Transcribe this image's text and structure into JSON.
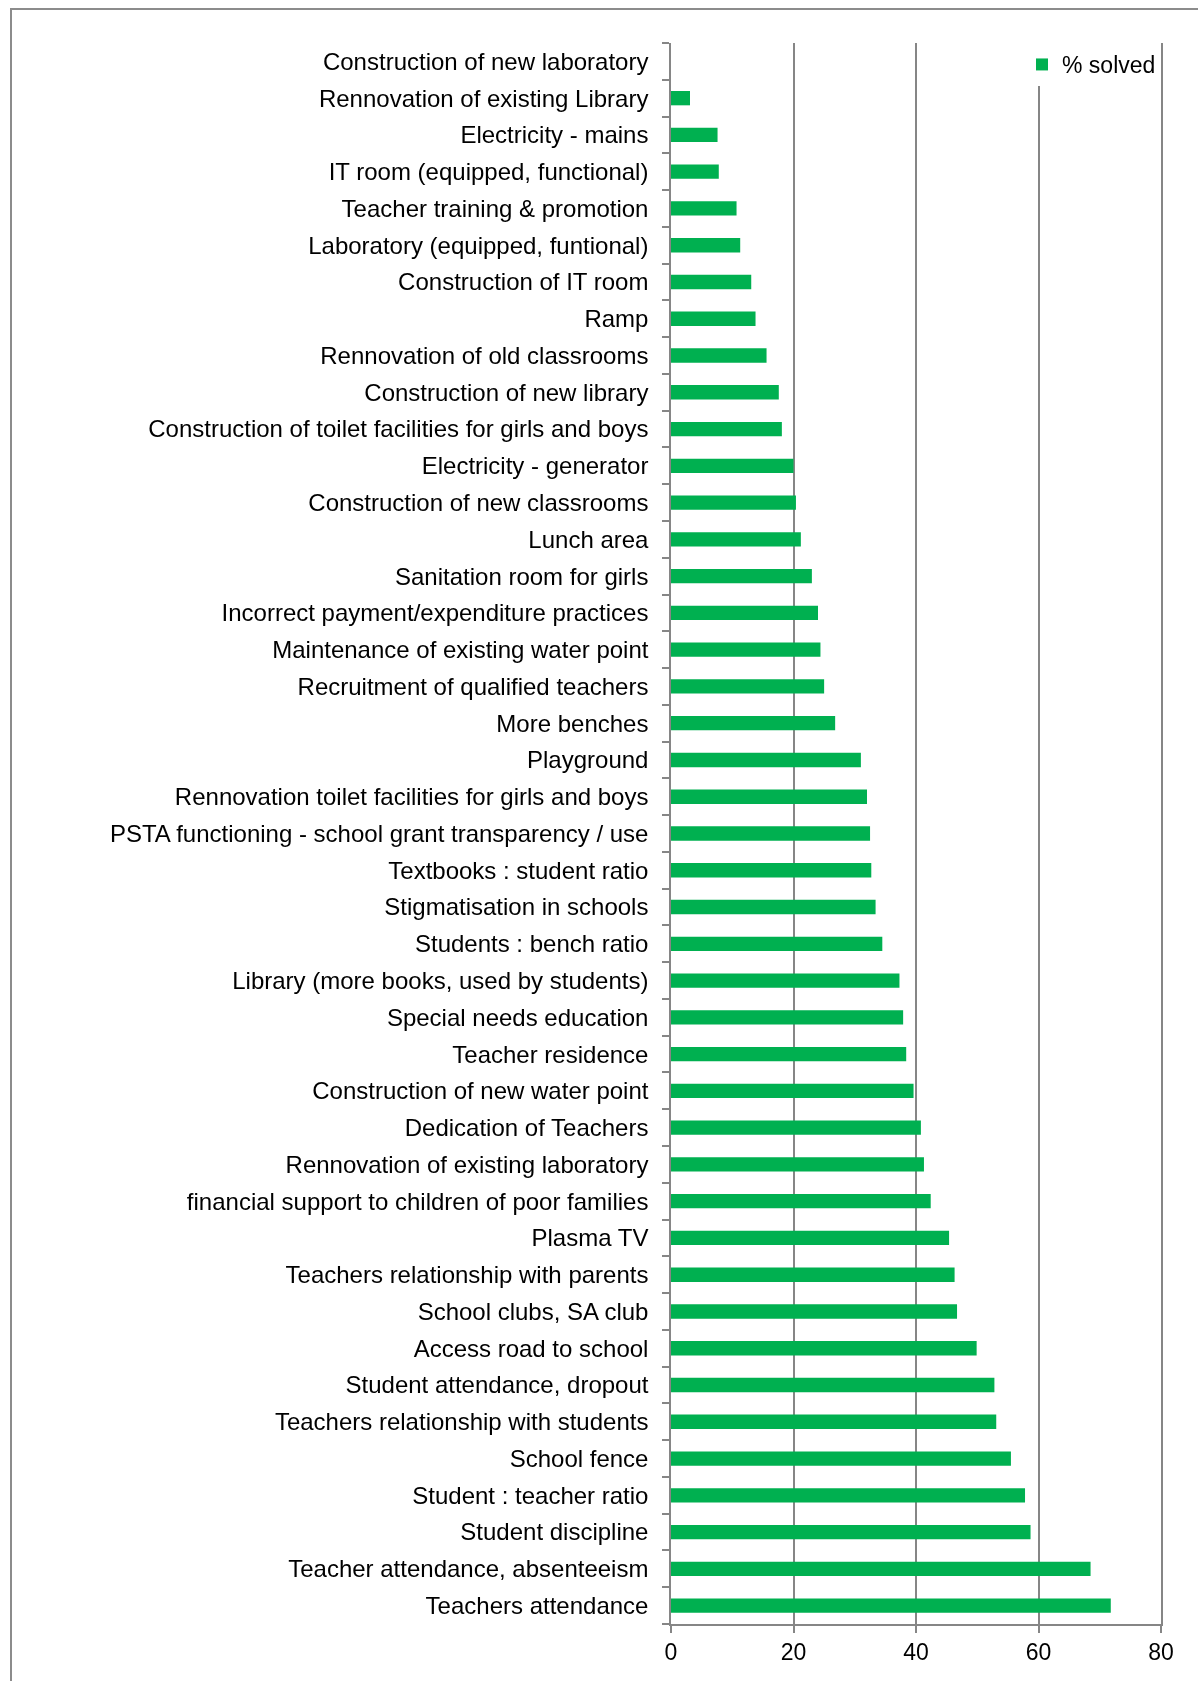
{
  "chart_data": {
    "type": "bar",
    "orientation": "horizontal",
    "categories": [
      "Construction of new laboratory",
      "Rennovation of existing Library",
      "Electricity - mains",
      "IT room (equipped, functional)",
      "Teacher training & promotion",
      "Laboratory (equipped, funtional)",
      "Construction of IT room",
      "Ramp",
      "Rennovation of old classrooms",
      "Construction of new library",
      "Construction of toilet facilities for girls and boys",
      "Electricity - generator",
      "Construction of new classrooms",
      "Lunch area",
      "Sanitation room for girls",
      "Incorrect payment/expenditure practices",
      "Maintenance of existing water point",
      "Recruitment of qualified teachers",
      "More benches",
      "Playground",
      "Rennovation toilet facilities for girls and boys",
      "PSTA functioning - school grant transparency / use",
      "Textbooks : student ratio",
      "Stigmatisation in schools",
      "Students : bench ratio",
      "Library (more books, used by students)",
      "Special needs education",
      "Teacher residence",
      "Construction of new water point",
      "Dedication of Teachers",
      "Rennovation of existing laboratory",
      "financial support to children of poor families",
      "Plasma TV",
      "Teachers relationship with parents",
      "School clubs, SA club",
      "Access road to school",
      "Student attendance, dropout",
      "Teachers relationship with students",
      "School fence",
      "Student : teacher ratio",
      "Student discipline",
      "Teacher attendance, absenteeism",
      "Teachers attendance"
    ],
    "series": [
      {
        "name": "% solved",
        "color": "#00b050",
        "values": [
          0,
          3.1,
          7.6,
          7.8,
          10.7,
          11.3,
          13.1,
          13.8,
          15.6,
          17.6,
          18.1,
          20.0,
          20.4,
          21.2,
          23.0,
          24.0,
          24.4,
          25.0,
          26.8,
          31.0,
          32.0,
          32.5,
          32.7,
          33.4,
          34.5,
          37.3,
          37.9,
          38.4,
          39.6,
          40.8,
          41.3,
          42.4,
          45.4,
          46.3,
          46.7,
          49.9,
          52.8,
          53.1,
          55.5,
          57.8,
          58.7,
          68.5,
          71.8
        ]
      }
    ],
    "xlim": [
      0,
      80
    ],
    "xticks": [
      0,
      20,
      40,
      60,
      80
    ],
    "grid": "x",
    "legend": "top right"
  }
}
